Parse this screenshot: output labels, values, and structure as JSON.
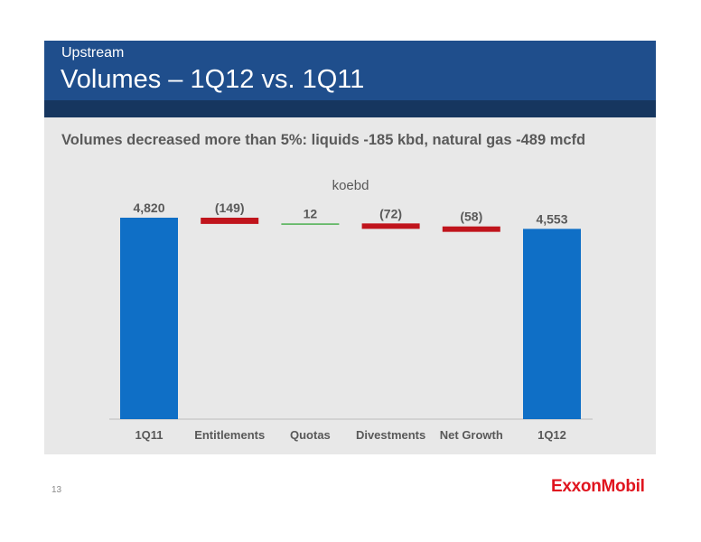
{
  "header": {
    "section": "Upstream",
    "title": "Volumes – 1Q12 vs. 1Q11"
  },
  "headline": "Volumes decreased more than 5%: liquids -185 kbd, natural gas -489 mcfd",
  "chart_data": {
    "type": "bar",
    "subtype": "waterfall",
    "unit_label": "koebd",
    "categories": [
      "1Q11",
      "Entitlements",
      "Quotas",
      "Divestments",
      "Net Growth",
      "1Q12"
    ],
    "values": [
      4820,
      -149,
      12,
      -72,
      -58,
      4553
    ],
    "kinds": [
      "total",
      "delta",
      "delta",
      "delta",
      "delta",
      "total"
    ],
    "labels": [
      "4,820",
      "(149)",
      "12",
      "(72)",
      "(58)",
      "4,553"
    ],
    "colors": {
      "total": "#0f6fc6",
      "decrease": "#c0141c",
      "increase": "#4caf50",
      "label": "#595959"
    },
    "grid": false,
    "legend": "none"
  },
  "footer": {
    "page_number": "13",
    "logo": "ExxonMobil"
  }
}
